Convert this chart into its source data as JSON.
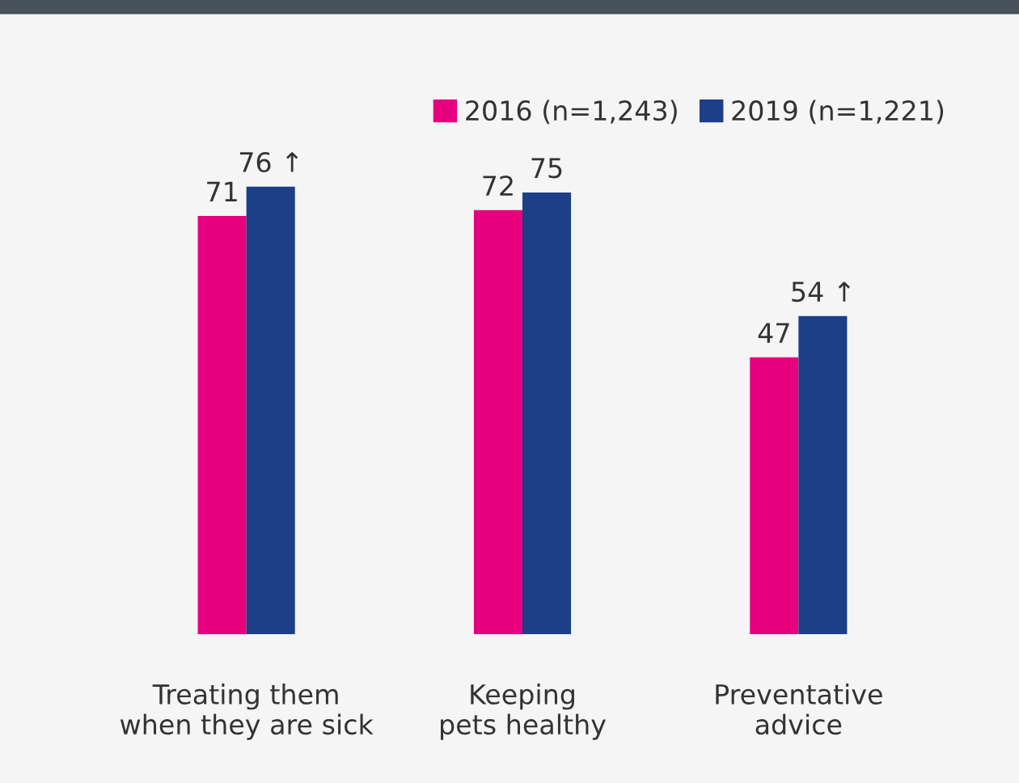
{
  "chart_data": {
    "type": "bar",
    "categories": [
      "Treating them\nwhen they are sick",
      "Keeping\npets healthy",
      "Preventative\nadvice"
    ],
    "series": [
      {
        "name": "2016 (n=1,243)",
        "color": "#e6007e",
        "values": [
          71,
          72,
          47
        ]
      },
      {
        "name": "2019 (n=1,221)",
        "color": "#1d3f87",
        "values": [
          76,
          75,
          54
        ],
        "value_labels": [
          "76 ↑",
          "75",
          "54 ↑"
        ]
      }
    ],
    "data_labels": true,
    "legend": "top right",
    "grid": false
  }
}
